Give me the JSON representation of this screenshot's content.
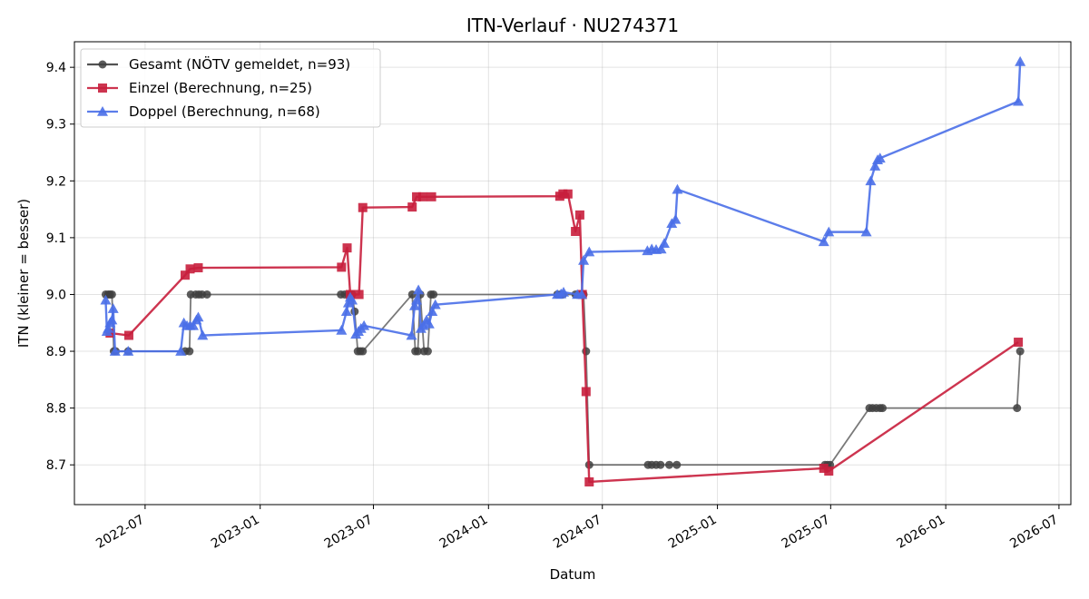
{
  "chart_data": {
    "type": "line",
    "title": "ITN-Verlauf · NU274371",
    "xlabel": "Datum",
    "ylabel": "ITN  (kleiner = besser)",
    "x_type": "date",
    "xlim": [
      "2022-03-10",
      "2026-07-20"
    ],
    "ylim": [
      8.63,
      9.445
    ],
    "x_ticks": [
      "2022-07-01",
      "2023-01-01",
      "2023-07-01",
      "2024-01-01",
      "2024-07-01",
      "2025-01-01",
      "2025-07-01",
      "2026-01-01",
      "2026-07-01"
    ],
    "x_tick_labels": [
      "2022-07",
      "2023-01",
      "2023-07",
      "2024-01",
      "2024-07",
      "2025-01",
      "2025-07",
      "2026-01",
      "2026-07"
    ],
    "y_ticks": [
      8.7,
      8.8,
      8.9,
      9.0,
      9.1,
      9.2,
      9.3,
      9.4
    ],
    "y_tick_labels": [
      "8.7",
      "8.8",
      "8.9",
      "9.0",
      "9.1",
      "9.2",
      "9.3",
      "9.4"
    ],
    "grid": true,
    "legend_position": "top-left",
    "series": [
      {
        "name": "Gesamt (NÖTV gemeldet, n=93)",
        "color": "#404040",
        "marker": "circle",
        "points": [
          [
            "2022-04-29",
            9.0
          ],
          [
            "2022-05-03",
            9.0
          ],
          [
            "2022-05-06",
            9.0
          ],
          [
            "2022-05-09",
            9.0
          ],
          [
            "2022-05-12",
            8.9
          ],
          [
            "2022-05-15",
            8.9
          ],
          [
            "2022-06-04",
            8.9
          ],
          [
            "2022-09-03",
            8.9
          ],
          [
            "2022-09-10",
            8.9
          ],
          [
            "2022-09-12",
            9.0
          ],
          [
            "2022-09-20",
            9.0
          ],
          [
            "2022-09-25",
            9.0
          ],
          [
            "2022-09-30",
            9.0
          ],
          [
            "2022-10-08",
            9.0
          ],
          [
            "2023-05-10",
            9.0
          ],
          [
            "2023-05-16",
            9.0
          ],
          [
            "2023-05-22",
            9.0
          ],
          [
            "2023-05-28",
            9.0
          ],
          [
            "2023-06-01",
            8.97
          ],
          [
            "2023-06-06",
            8.9
          ],
          [
            "2023-06-10",
            8.9
          ],
          [
            "2023-06-14",
            8.9
          ],
          [
            "2023-09-01",
            9.0
          ],
          [
            "2023-09-06",
            8.9
          ],
          [
            "2023-09-10",
            8.9
          ],
          [
            "2023-09-14",
            9.0
          ],
          [
            "2023-09-20",
            8.9
          ],
          [
            "2023-09-26",
            8.9
          ],
          [
            "2023-10-01",
            9.0
          ],
          [
            "2023-10-05",
            9.0
          ],
          [
            "2024-04-20",
            9.0
          ],
          [
            "2024-04-25",
            9.0
          ],
          [
            "2024-04-29",
            9.0
          ],
          [
            "2024-05-19",
            9.0
          ],
          [
            "2024-05-28",
            9.0
          ],
          [
            "2024-06-01",
            9.0
          ],
          [
            "2024-06-05",
            8.9
          ],
          [
            "2024-06-10",
            8.7
          ],
          [
            "2024-09-12",
            8.7
          ],
          [
            "2024-09-18",
            8.7
          ],
          [
            "2024-09-25",
            8.7
          ],
          [
            "2024-10-02",
            8.7
          ],
          [
            "2024-10-16",
            8.7
          ],
          [
            "2024-10-28",
            8.7
          ],
          [
            "2025-06-22",
            8.7
          ],
          [
            "2025-06-26",
            8.7
          ],
          [
            "2025-06-30",
            8.7
          ],
          [
            "2025-09-01",
            8.8
          ],
          [
            "2025-09-06",
            8.8
          ],
          [
            "2025-09-12",
            8.8
          ],
          [
            "2025-09-18",
            8.8
          ],
          [
            "2025-09-22",
            8.8
          ],
          [
            "2026-04-25",
            8.8
          ],
          [
            "2026-04-30",
            8.9
          ]
        ]
      },
      {
        "name": "Einzel (Berechnung, n=25)",
        "color": "#c81e3c",
        "marker": "square",
        "points": [
          [
            "2022-05-06",
            8.932
          ],
          [
            "2022-06-05",
            8.928
          ],
          [
            "2022-09-03",
            9.034
          ],
          [
            "2022-09-11",
            9.045
          ],
          [
            "2022-09-24",
            9.047
          ],
          [
            "2023-05-11",
            9.048
          ],
          [
            "2023-05-20",
            9.082
          ],
          [
            "2023-05-25",
            9.0
          ],
          [
            "2023-06-08",
            9.0
          ],
          [
            "2023-06-14",
            9.153
          ],
          [
            "2023-09-01",
            9.154
          ],
          [
            "2023-09-08",
            9.172
          ],
          [
            "2023-09-18",
            9.172
          ],
          [
            "2023-10-02",
            9.172
          ],
          [
            "2024-04-24",
            9.173
          ],
          [
            "2024-04-29",
            9.177
          ],
          [
            "2024-05-07",
            9.177
          ],
          [
            "2024-05-19",
            9.111
          ],
          [
            "2024-05-26",
            9.14
          ],
          [
            "2024-05-30",
            9.0
          ],
          [
            "2024-06-05",
            8.829
          ],
          [
            "2024-06-10",
            8.67
          ],
          [
            "2025-06-20",
            8.694
          ],
          [
            "2025-06-28",
            8.689
          ],
          [
            "2026-04-27",
            8.916
          ]
        ]
      },
      {
        "name": "Doppel (Berechnung, n=68)",
        "color": "#4a6fe8",
        "marker": "triangle",
        "points": [
          [
            "2022-04-29",
            8.99
          ],
          [
            "2022-05-01",
            8.935
          ],
          [
            "2022-05-03",
            8.94
          ],
          [
            "2022-05-06",
            8.95
          ],
          [
            "2022-05-09",
            8.955
          ],
          [
            "2022-05-11",
            8.975
          ],
          [
            "2022-05-14",
            8.9
          ],
          [
            "2022-06-04",
            8.9
          ],
          [
            "2022-08-27",
            8.9
          ],
          [
            "2022-09-01",
            8.95
          ],
          [
            "2022-09-06",
            8.945
          ],
          [
            "2022-09-11",
            8.945
          ],
          [
            "2022-09-16",
            8.945
          ],
          [
            "2022-09-21",
            8.955
          ],
          [
            "2022-09-24",
            8.96
          ],
          [
            "2022-10-01",
            8.928
          ],
          [
            "2023-05-11",
            8.937
          ],
          [
            "2023-05-19",
            8.97
          ],
          [
            "2023-05-22",
            8.985
          ],
          [
            "2023-05-25",
            8.995
          ],
          [
            "2023-05-28",
            8.99
          ],
          [
            "2023-06-03",
            8.93
          ],
          [
            "2023-06-07",
            8.935
          ],
          [
            "2023-06-11",
            8.94
          ],
          [
            "2023-06-16",
            8.945
          ],
          [
            "2023-08-31",
            8.928
          ],
          [
            "2023-09-05",
            8.98
          ],
          [
            "2023-09-08",
            8.99
          ],
          [
            "2023-09-11",
            9.008
          ],
          [
            "2023-09-15",
            8.94
          ],
          [
            "2023-09-19",
            8.945
          ],
          [
            "2023-09-24",
            8.955
          ],
          [
            "2023-09-28",
            8.948
          ],
          [
            "2023-10-03",
            8.97
          ],
          [
            "2023-10-08",
            8.982
          ],
          [
            "2024-04-20",
            9.0
          ],
          [
            "2024-04-26",
            9.001
          ],
          [
            "2024-04-30",
            9.004
          ],
          [
            "2024-05-22",
            9.0
          ],
          [
            "2024-05-29",
            9.0
          ],
          [
            "2024-06-01",
            9.06
          ],
          [
            "2024-06-10",
            9.075
          ],
          [
            "2024-09-11",
            9.077
          ],
          [
            "2024-09-18",
            9.08
          ],
          [
            "2024-09-25",
            9.079
          ],
          [
            "2024-10-03",
            9.08
          ],
          [
            "2024-10-08",
            9.09
          ],
          [
            "2024-10-20",
            9.125
          ],
          [
            "2024-10-26",
            9.132
          ],
          [
            "2024-10-29",
            9.185
          ],
          [
            "2025-06-20",
            9.093
          ],
          [
            "2025-06-28",
            9.11
          ],
          [
            "2025-08-27",
            9.11
          ],
          [
            "2025-09-03",
            9.2
          ],
          [
            "2025-09-10",
            9.226
          ],
          [
            "2025-09-14",
            9.237
          ],
          [
            "2025-09-18",
            9.24
          ],
          [
            "2026-04-27",
            9.34
          ],
          [
            "2026-04-30",
            9.41
          ]
        ]
      }
    ]
  }
}
